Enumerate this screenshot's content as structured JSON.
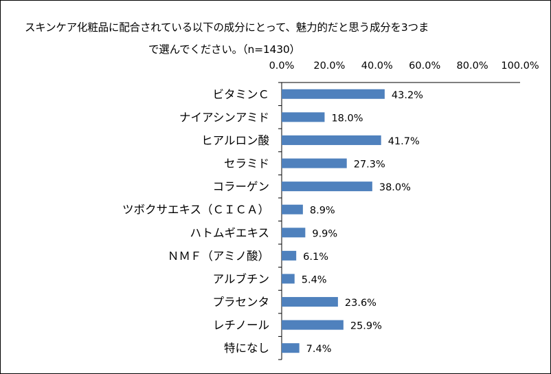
{
  "chart_data": {
    "type": "bar",
    "orientation": "horizontal",
    "title_line1": "スキンケア化粧品に配合されている以下の成分にとって、魅力的だと思う成分を3つま",
    "title_line2": "で選んでください。（n=1430）",
    "categories": [
      "ビタミンＣ",
      "ナイアシンアミド",
      "ヒアルロン酸",
      "セラミド",
      "コラーゲン",
      "ツボクサエキス（ＣＩＣＡ）",
      "ハトムギエキス",
      "ＮＭＦ（アミノ酸）",
      "アルブチン",
      "プラセンタ",
      "レチノール",
      "特になし"
    ],
    "values": [
      43.2,
      18.0,
      41.7,
      27.3,
      38.0,
      8.9,
      9.9,
      6.1,
      5.4,
      23.6,
      25.9,
      7.4
    ],
    "value_labels": [
      "43.2%",
      "18.0%",
      "41.7%",
      "27.3%",
      "38.0%",
      "8.9%",
      "9.9%",
      "6.1%",
      "5.4%",
      "23.6%",
      "25.9%",
      "7.4%"
    ],
    "x_ticks": [
      "0.0%",
      "20.0%",
      "40.0%",
      "60.0%",
      "80.0%",
      "100.0%"
    ],
    "xlim": [
      0,
      100
    ],
    "bar_color": "#4f81bd",
    "grid": false,
    "legend": "none"
  }
}
